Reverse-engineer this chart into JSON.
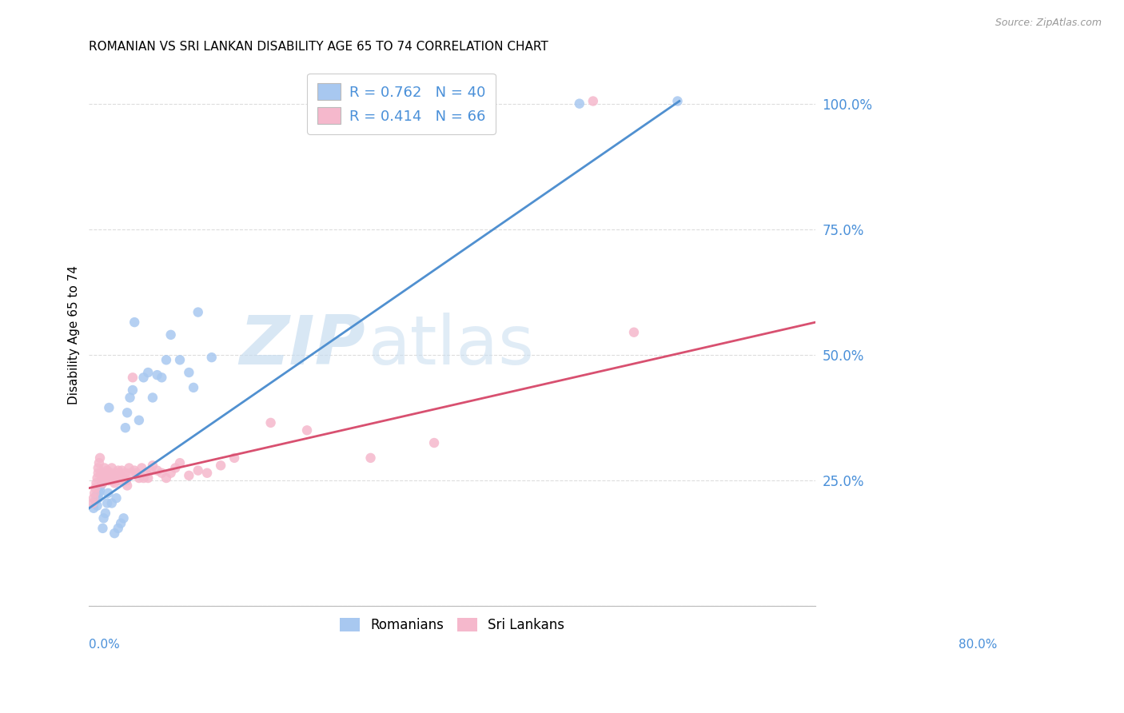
{
  "title": "ROMANIAN VS SRI LANKAN DISABILITY AGE 65 TO 74 CORRELATION CHART",
  "source": "Source: ZipAtlas.com",
  "ylabel": "Disability Age 65 to 74",
  "color_romanian": "#a8c8f0",
  "color_srilankan": "#f5b8cc",
  "color_line_romanian": "#5090d0",
  "color_line_srilankan": "#d85070",
  "color_axis_text": "#4a90d9",
  "xmin": 0.0,
  "xmax": 0.8,
  "ymin": 0.0,
  "ymax": 1.08,
  "yticks": [
    0.0,
    0.25,
    0.5,
    0.75,
    1.0
  ],
  "ytick_labels": [
    "",
    "25.0%",
    "50.0%",
    "75.0%",
    "100.0%"
  ],
  "legend_r1": "R = 0.762",
  "legend_n1": "N = 40",
  "legend_r2": "R = 0.414",
  "legend_n2": "N = 66",
  "romanian_line": [
    [
      0.0,
      0.65
    ],
    [
      0.195,
      1.005
    ]
  ],
  "srilankan_line": [
    [
      0.0,
      0.8
    ],
    [
      0.235,
      0.565
    ]
  ],
  "romanian_x": [
    0.005,
    0.007,
    0.008,
    0.009,
    0.01,
    0.011,
    0.012,
    0.013,
    0.015,
    0.016,
    0.018,
    0.02,
    0.021,
    0.022,
    0.025,
    0.028,
    0.03,
    0.032,
    0.035,
    0.038,
    0.04,
    0.042,
    0.045,
    0.048,
    0.05,
    0.055,
    0.06,
    0.065,
    0.07,
    0.075,
    0.08,
    0.085,
    0.09,
    0.1,
    0.11,
    0.115,
    0.12,
    0.135,
    0.54,
    0.648
  ],
  "romanian_y": [
    0.195,
    0.21,
    0.22,
    0.2,
    0.215,
    0.225,
    0.23,
    0.24,
    0.155,
    0.175,
    0.185,
    0.205,
    0.225,
    0.395,
    0.205,
    0.145,
    0.215,
    0.155,
    0.165,
    0.175,
    0.355,
    0.385,
    0.415,
    0.43,
    0.565,
    0.37,
    0.455,
    0.465,
    0.415,
    0.46,
    0.455,
    0.49,
    0.54,
    0.49,
    0.465,
    0.435,
    0.585,
    0.495,
    1.0,
    1.005
  ],
  "srilankan_x": [
    0.004,
    0.005,
    0.006,
    0.007,
    0.008,
    0.009,
    0.01,
    0.01,
    0.011,
    0.012,
    0.013,
    0.014,
    0.015,
    0.016,
    0.017,
    0.018,
    0.019,
    0.02,
    0.021,
    0.022,
    0.023,
    0.024,
    0.025,
    0.026,
    0.027,
    0.028,
    0.03,
    0.031,
    0.032,
    0.033,
    0.034,
    0.035,
    0.036,
    0.038,
    0.04,
    0.041,
    0.042,
    0.044,
    0.046,
    0.048,
    0.05,
    0.052,
    0.055,
    0.058,
    0.06,
    0.063,
    0.065,
    0.068,
    0.07,
    0.075,
    0.08,
    0.085,
    0.09,
    0.095,
    0.1,
    0.11,
    0.12,
    0.13,
    0.145,
    0.16,
    0.2,
    0.24,
    0.31,
    0.38,
    0.555,
    0.6
  ],
  "srilankan_y": [
    0.205,
    0.215,
    0.225,
    0.235,
    0.245,
    0.255,
    0.265,
    0.275,
    0.285,
    0.295,
    0.265,
    0.255,
    0.245,
    0.255,
    0.275,
    0.265,
    0.255,
    0.27,
    0.26,
    0.25,
    0.255,
    0.265,
    0.275,
    0.26,
    0.25,
    0.245,
    0.255,
    0.265,
    0.27,
    0.26,
    0.25,
    0.26,
    0.27,
    0.255,
    0.265,
    0.25,
    0.24,
    0.275,
    0.265,
    0.455,
    0.27,
    0.265,
    0.255,
    0.275,
    0.255,
    0.265,
    0.255,
    0.27,
    0.28,
    0.27,
    0.265,
    0.255,
    0.265,
    0.275,
    0.285,
    0.26,
    0.27,
    0.265,
    0.28,
    0.295,
    0.365,
    0.35,
    0.295,
    0.325,
    1.005,
    0.545
  ]
}
